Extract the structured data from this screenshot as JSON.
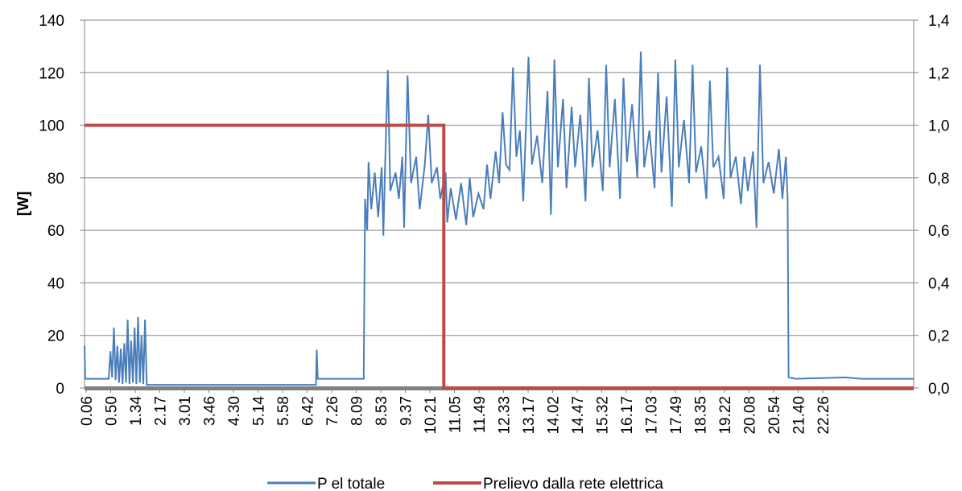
{
  "chart_data": {
    "type": "line",
    "title": "",
    "xlabel": "",
    "ylabel": "[W]",
    "ylim": [
      0,
      140
    ],
    "y_ticks": [
      0,
      20,
      40,
      60,
      80,
      100,
      120,
      140
    ],
    "y2lim": [
      0,
      1.4
    ],
    "y2_ticks": [
      "0,0",
      "0,2",
      "0,4",
      "0,6",
      "0,8",
      "1,0",
      "1,2",
      "1,4"
    ],
    "grid": true,
    "legend_position": "bottom",
    "x_tick_labels": [
      "0.06",
      "0.50",
      "1.34",
      "2.17",
      "3.01",
      "3.46",
      "4.30",
      "5.14",
      "5.58",
      "6.42",
      "7.26",
      "8.09",
      "8.53",
      "9.37",
      "10.21",
      "11.05",
      "11.49",
      "12.33",
      "13.17",
      "14.02",
      "14.47",
      "15.32",
      "16.17",
      "17.03",
      "17.49",
      "18.35",
      "19.22",
      "20.08",
      "20.54",
      "21.40",
      "22.26"
    ],
    "series": [
      {
        "name": "P el totale",
        "axis": "left",
        "color": "#4a7ebb",
        "points": [
          [
            0.0,
            16
          ],
          [
            0.02,
            3.5
          ],
          [
            0.7,
            3.5
          ],
          [
            0.75,
            14
          ],
          [
            0.8,
            4
          ],
          [
            0.85,
            23
          ],
          [
            0.9,
            3
          ],
          [
            0.95,
            16
          ],
          [
            1.0,
            2
          ],
          [
            1.05,
            15
          ],
          [
            1.1,
            1.5
          ],
          [
            1.15,
            17
          ],
          [
            1.2,
            2
          ],
          [
            1.25,
            26
          ],
          [
            1.3,
            1.5
          ],
          [
            1.35,
            18
          ],
          [
            1.4,
            2
          ],
          [
            1.45,
            23
          ],
          [
            1.5,
            1.5
          ],
          [
            1.55,
            27
          ],
          [
            1.6,
            2
          ],
          [
            1.65,
            20
          ],
          [
            1.7,
            1.5
          ],
          [
            1.75,
            26
          ],
          [
            1.8,
            1.2
          ],
          [
            3.0,
            1.2
          ],
          [
            4.5,
            1.2
          ],
          [
            6.7,
            1.2
          ],
          [
            6.72,
            14.5
          ],
          [
            6.75,
            3.5
          ],
          [
            8.0,
            3.5
          ],
          [
            8.08,
            3.5
          ],
          [
            8.12,
            72
          ],
          [
            8.18,
            60
          ],
          [
            8.22,
            86
          ],
          [
            8.3,
            68
          ],
          [
            8.4,
            82
          ],
          [
            8.5,
            65
          ],
          [
            8.6,
            84
          ],
          [
            8.65,
            58
          ],
          [
            8.7,
            85
          ],
          [
            8.78,
            121
          ],
          [
            8.85,
            75
          ],
          [
            9.0,
            82
          ],
          [
            9.1,
            72
          ],
          [
            9.2,
            88
          ],
          [
            9.25,
            61
          ],
          [
            9.35,
            119
          ],
          [
            9.45,
            78
          ],
          [
            9.6,
            88
          ],
          [
            9.7,
            68
          ],
          [
            9.85,
            85
          ],
          [
            9.95,
            104
          ],
          [
            10.05,
            78
          ],
          [
            10.2,
            84
          ],
          [
            10.3,
            72
          ],
          [
            10.45,
            82
          ],
          [
            10.5,
            63
          ],
          [
            10.6,
            76
          ],
          [
            10.75,
            64
          ],
          [
            10.9,
            78
          ],
          [
            11.05,
            62
          ],
          [
            11.15,
            80
          ],
          [
            11.25,
            65
          ],
          [
            11.4,
            74
          ],
          [
            11.55,
            68
          ],
          [
            11.65,
            85
          ],
          [
            11.75,
            72
          ],
          [
            11.9,
            90
          ],
          [
            12.0,
            78
          ],
          [
            12.1,
            105
          ],
          [
            12.2,
            85
          ],
          [
            12.3,
            83
          ],
          [
            12.4,
            122
          ],
          [
            12.5,
            88
          ],
          [
            12.6,
            98
          ],
          [
            12.7,
            71
          ],
          [
            12.85,
            126
          ],
          [
            12.95,
            85
          ],
          [
            13.1,
            96
          ],
          [
            13.25,
            78
          ],
          [
            13.4,
            113
          ],
          [
            13.5,
            66
          ],
          [
            13.6,
            125
          ],
          [
            13.7,
            84
          ],
          [
            13.85,
            110
          ],
          [
            13.95,
            76
          ],
          [
            14.1,
            107
          ],
          [
            14.2,
            84
          ],
          [
            14.35,
            104
          ],
          [
            14.5,
            71
          ],
          [
            14.6,
            118
          ],
          [
            14.7,
            84
          ],
          [
            14.85,
            98
          ],
          [
            15.0,
            75
          ],
          [
            15.1,
            123
          ],
          [
            15.2,
            84
          ],
          [
            15.35,
            110
          ],
          [
            15.5,
            72
          ],
          [
            15.6,
            118
          ],
          [
            15.7,
            86
          ],
          [
            15.85,
            108
          ],
          [
            16.0,
            80
          ],
          [
            16.1,
            128
          ],
          [
            16.2,
            84
          ],
          [
            16.35,
            98
          ],
          [
            16.5,
            76
          ],
          [
            16.6,
            120
          ],
          [
            16.7,
            82
          ],
          [
            16.85,
            111
          ],
          [
            17.0,
            69
          ],
          [
            17.1,
            125
          ],
          [
            17.2,
            84
          ],
          [
            17.35,
            102
          ],
          [
            17.5,
            78
          ],
          [
            17.6,
            123
          ],
          [
            17.7,
            82
          ],
          [
            17.85,
            92
          ],
          [
            18.0,
            72
          ],
          [
            18.1,
            117
          ],
          [
            18.2,
            84
          ],
          [
            18.35,
            88
          ],
          [
            18.5,
            72
          ],
          [
            18.6,
            122
          ],
          [
            18.7,
            80
          ],
          [
            18.85,
            88
          ],
          [
            19.0,
            70
          ],
          [
            19.1,
            88
          ],
          [
            19.2,
            75
          ],
          [
            19.35,
            90
          ],
          [
            19.45,
            61
          ],
          [
            19.55,
            123
          ],
          [
            19.65,
            78
          ],
          [
            19.8,
            86
          ],
          [
            19.95,
            74
          ],
          [
            20.1,
            91
          ],
          [
            20.2,
            72
          ],
          [
            20.3,
            88
          ],
          [
            20.35,
            72
          ],
          [
            20.38,
            4
          ],
          [
            20.6,
            3.5
          ],
          [
            22.0,
            4
          ],
          [
            22.5,
            3.5
          ],
          [
            23.9,
            3.5
          ],
          [
            24.0,
            3.5
          ]
        ]
      },
      {
        "name": "Prelievo dalla rete elettrica",
        "axis": "right",
        "color": "#be4b48",
        "points": [
          [
            0.0,
            1.0
          ],
          [
            10.4,
            1.0
          ],
          [
            10.4,
            0.0
          ],
          [
            24.0,
            0.0
          ]
        ]
      }
    ],
    "baseline_color": "#808080"
  }
}
